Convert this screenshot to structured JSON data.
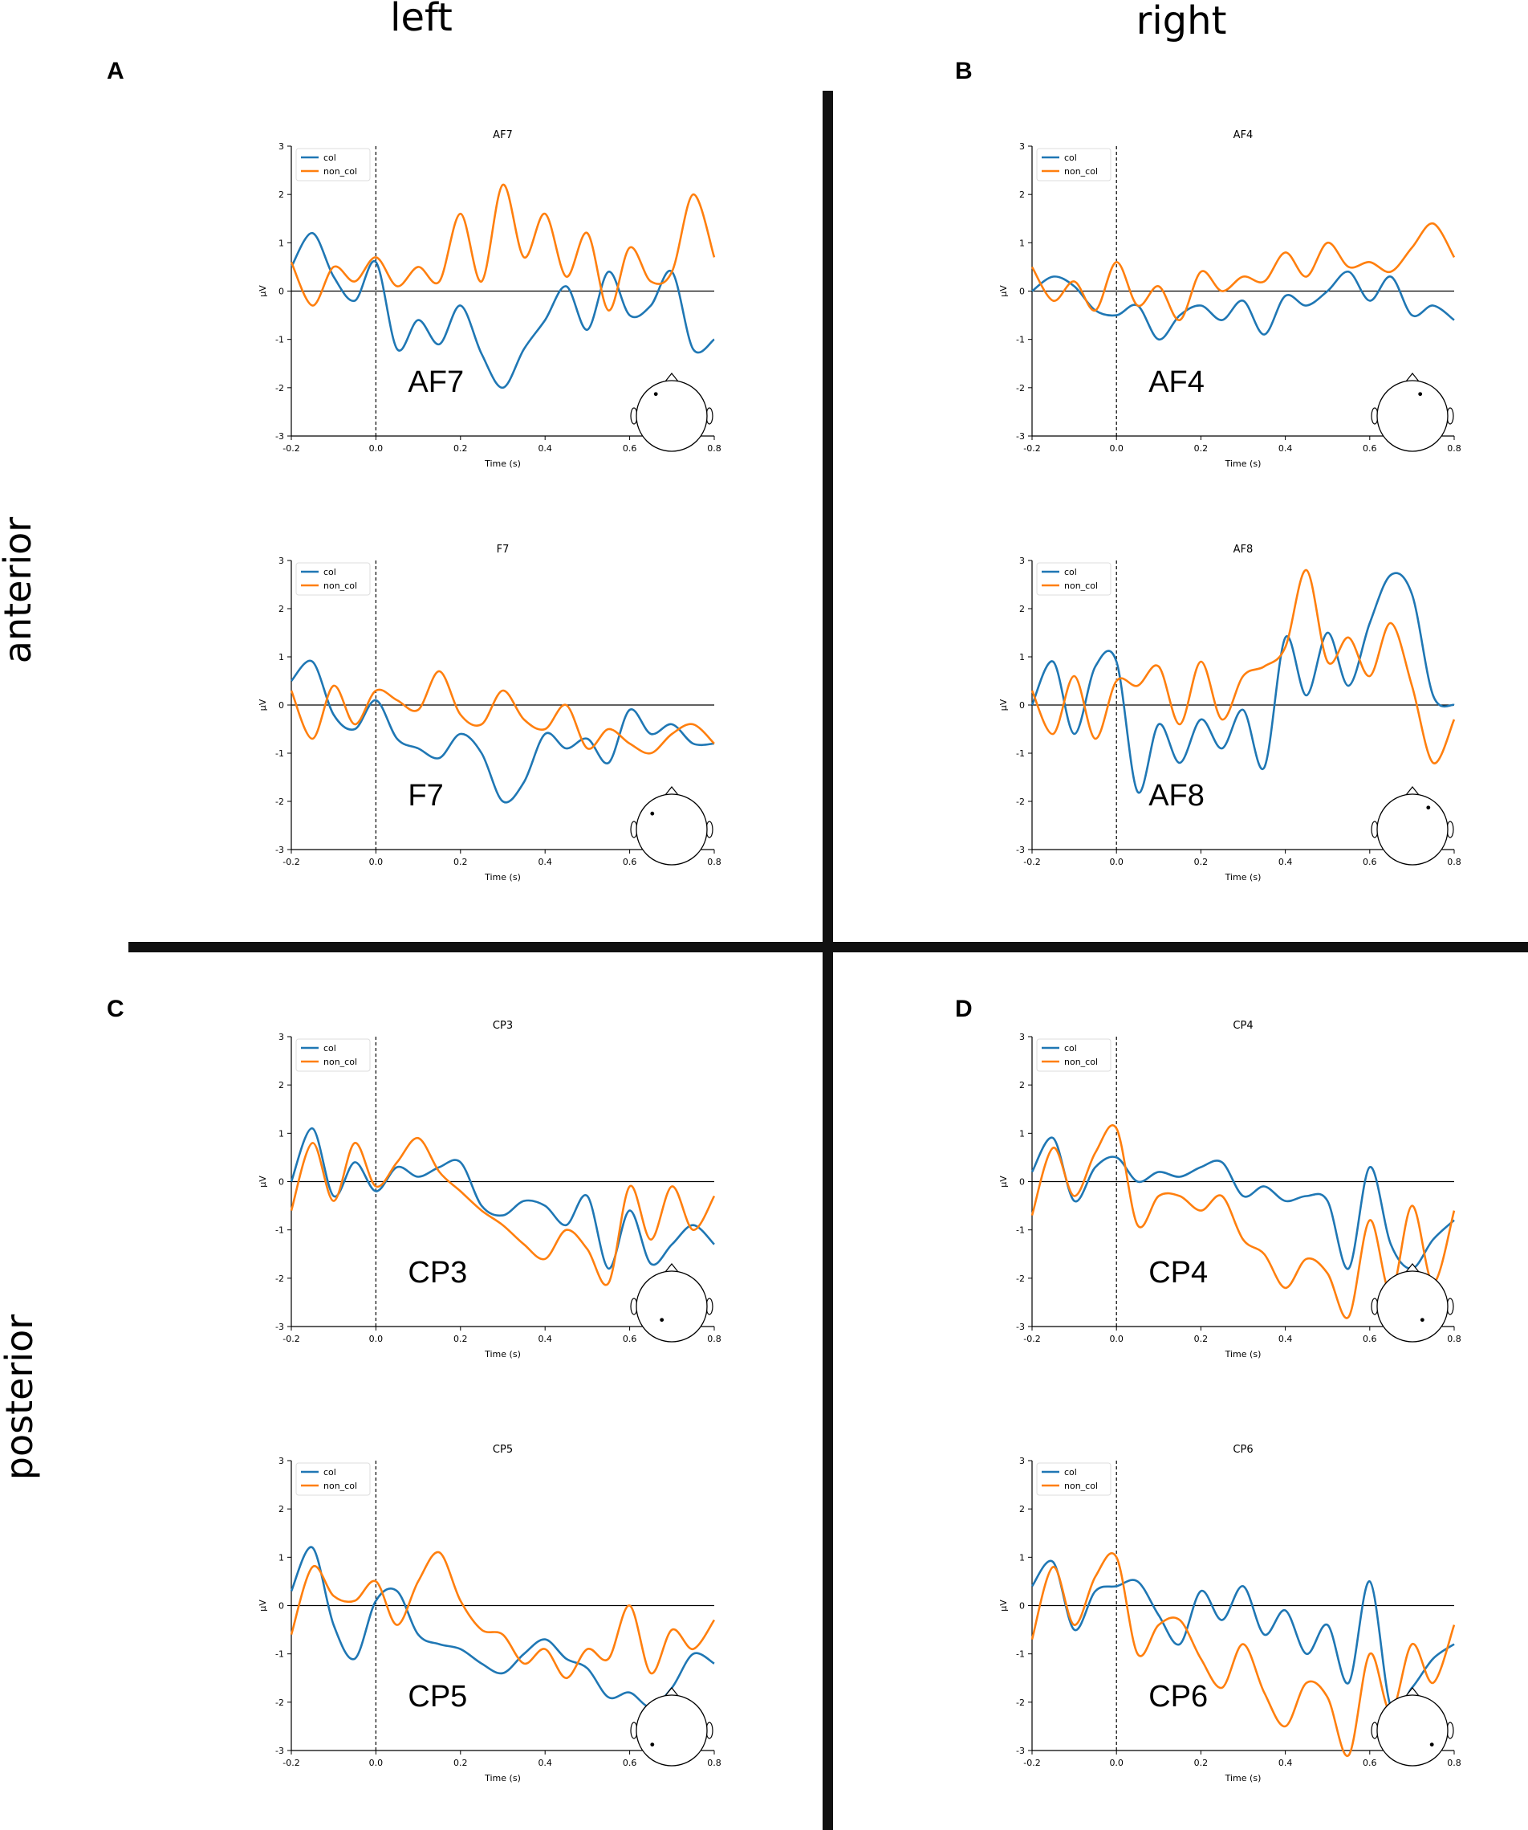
{
  "figure": {
    "column_labels": [
      "left",
      "right"
    ],
    "row_labels": [
      "anterior",
      "posterior"
    ],
    "panel_letters": [
      "A",
      "B",
      "C",
      "D"
    ],
    "colors": {
      "col": "#1f77b4",
      "non_col": "#ff7f0e",
      "axis": "#000000",
      "divider": "#111111"
    }
  },
  "chart_data": [
    {
      "type": "line",
      "panel": "A",
      "title": "AF7",
      "channel_label": "AF7",
      "xlabel": "Time (s)",
      "ylabel": "µV",
      "xlim": [
        -0.2,
        0.8
      ],
      "ylim": [
        -3,
        3
      ],
      "xticks": [
        "-0.2",
        "0.0",
        "0.2",
        "0.4",
        "0.6",
        "0.8"
      ],
      "yticks": [
        "3",
        "2",
        "1",
        "0",
        "-1",
        "-2",
        "-3"
      ],
      "legend": [
        "col",
        "non_col"
      ],
      "sensor": "AF7",
      "x": [
        -0.2,
        -0.15,
        -0.1,
        -0.05,
        0.0,
        0.05,
        0.1,
        0.15,
        0.2,
        0.25,
        0.3,
        0.35,
        0.4,
        0.45,
        0.5,
        0.55,
        0.6,
        0.65,
        0.7,
        0.75,
        0.8
      ],
      "series": [
        {
          "name": "col",
          "values": [
            0.5,
            1.2,
            0.3,
            -0.2,
            0.6,
            -1.2,
            -0.6,
            -1.1,
            -0.3,
            -1.3,
            -2.0,
            -1.2,
            -0.6,
            0.1,
            -0.8,
            0.4,
            -0.5,
            -0.3,
            0.4,
            -1.2,
            -1.0
          ]
        },
        {
          "name": "non_col",
          "values": [
            0.6,
            -0.3,
            0.5,
            0.2,
            0.7,
            0.1,
            0.5,
            0.2,
            1.6,
            0.2,
            2.2,
            0.7,
            1.6,
            0.3,
            1.2,
            -0.4,
            0.9,
            0.2,
            0.4,
            2.0,
            0.7
          ]
        }
      ]
    },
    {
      "type": "line",
      "panel": "B",
      "title": "AF4",
      "channel_label": "AF4",
      "xlabel": "Time (s)",
      "ylabel": "µV",
      "xlim": [
        -0.2,
        0.8
      ],
      "ylim": [
        -3,
        3
      ],
      "xticks": [
        "-0.2",
        "0.0",
        "0.2",
        "0.4",
        "0.6",
        "0.8"
      ],
      "yticks": [
        "3",
        "2",
        "1",
        "0",
        "-1",
        "-2",
        "-3"
      ],
      "legend": [
        "col",
        "non_col"
      ],
      "sensor": "AF4",
      "x": [
        -0.2,
        -0.15,
        -0.1,
        -0.05,
        0.0,
        0.05,
        0.1,
        0.15,
        0.2,
        0.25,
        0.3,
        0.35,
        0.4,
        0.45,
        0.5,
        0.55,
        0.6,
        0.65,
        0.7,
        0.75,
        0.8
      ],
      "series": [
        {
          "name": "col",
          "values": [
            0.0,
            0.3,
            0.1,
            -0.4,
            -0.5,
            -0.3,
            -1.0,
            -0.5,
            -0.3,
            -0.6,
            -0.2,
            -0.9,
            -0.1,
            -0.3,
            0.0,
            0.4,
            -0.2,
            0.3,
            -0.5,
            -0.3,
            -0.6
          ]
        },
        {
          "name": "non_col",
          "values": [
            0.5,
            -0.2,
            0.2,
            -0.4,
            0.6,
            -0.3,
            0.1,
            -0.6,
            0.4,
            0.0,
            0.3,
            0.2,
            0.8,
            0.3,
            1.0,
            0.5,
            0.6,
            0.4,
            0.9,
            1.4,
            0.7
          ]
        }
      ]
    },
    {
      "type": "line",
      "panel": "A",
      "title": "F7",
      "channel_label": "F7",
      "xlabel": "Time (s)",
      "ylabel": "µV",
      "xlim": [
        -0.2,
        0.8
      ],
      "ylim": [
        -3,
        3
      ],
      "xticks": [
        "-0.2",
        "0.0",
        "0.2",
        "0.4",
        "0.6",
        "0.8"
      ],
      "yticks": [
        "3",
        "2",
        "1",
        "0",
        "-1",
        "-2",
        "-3"
      ],
      "legend": [
        "col",
        "non_col"
      ],
      "sensor": "F7",
      "x": [
        -0.2,
        -0.15,
        -0.1,
        -0.05,
        0.0,
        0.05,
        0.1,
        0.15,
        0.2,
        0.25,
        0.3,
        0.35,
        0.4,
        0.45,
        0.5,
        0.55,
        0.6,
        0.65,
        0.7,
        0.75,
        0.8
      ],
      "series": [
        {
          "name": "col",
          "values": [
            0.5,
            0.9,
            -0.2,
            -0.5,
            0.1,
            -0.7,
            -0.9,
            -1.1,
            -0.6,
            -1.0,
            -2.0,
            -1.6,
            -0.6,
            -0.9,
            -0.7,
            -1.2,
            -0.1,
            -0.6,
            -0.4,
            -0.8,
            -0.8
          ]
        },
        {
          "name": "non_col",
          "values": [
            0.3,
            -0.7,
            0.4,
            -0.4,
            0.3,
            0.1,
            -0.1,
            0.7,
            -0.2,
            -0.4,
            0.3,
            -0.3,
            -0.5,
            0.0,
            -0.9,
            -0.5,
            -0.8,
            -1.0,
            -0.6,
            -0.4,
            -0.8
          ]
        }
      ]
    },
    {
      "type": "line",
      "panel": "B",
      "title": "AF8",
      "channel_label": "AF8",
      "xlabel": "Time (s)",
      "ylabel": "µV",
      "xlim": [
        -0.2,
        0.8
      ],
      "ylim": [
        -3,
        3
      ],
      "xticks": [
        "-0.2",
        "0.0",
        "0.2",
        "0.4",
        "0.6",
        "0.8"
      ],
      "yticks": [
        "3",
        "2",
        "1",
        "0",
        "-1",
        "-2",
        "-3"
      ],
      "legend": [
        "col",
        "non_col"
      ],
      "sensor": "AF8",
      "x": [
        -0.2,
        -0.15,
        -0.1,
        -0.05,
        0.0,
        0.05,
        0.1,
        0.15,
        0.2,
        0.25,
        0.3,
        0.35,
        0.4,
        0.45,
        0.5,
        0.55,
        0.6,
        0.65,
        0.7,
        0.75,
        0.8
      ],
      "series": [
        {
          "name": "col",
          "values": [
            0.0,
            0.9,
            -0.6,
            0.8,
            0.9,
            -1.8,
            -0.4,
            -1.2,
            -0.3,
            -0.9,
            -0.1,
            -1.3,
            1.4,
            0.2,
            1.5,
            0.4,
            1.7,
            2.7,
            2.3,
            0.2,
            0.0
          ]
        },
        {
          "name": "non_col",
          "values": [
            0.3,
            -0.6,
            0.6,
            -0.7,
            0.5,
            0.4,
            0.8,
            -0.4,
            0.9,
            -0.3,
            0.6,
            0.8,
            1.2,
            2.8,
            0.9,
            1.4,
            0.6,
            1.7,
            0.4,
            -1.2,
            -0.3
          ]
        }
      ]
    },
    {
      "type": "line",
      "panel": "C",
      "title": "CP3",
      "channel_label": "CP3",
      "xlabel": "Time (s)",
      "ylabel": "µV",
      "xlim": [
        -0.2,
        0.8
      ],
      "ylim": [
        -3,
        3
      ],
      "xticks": [
        "-0.2",
        "0.0",
        "0.2",
        "0.4",
        "0.6",
        "0.8"
      ],
      "yticks": [
        "3",
        "2",
        "1",
        "0",
        "-1",
        "-2",
        "-3"
      ],
      "legend": [
        "col",
        "non_col"
      ],
      "sensor": "CP3",
      "x": [
        -0.2,
        -0.15,
        -0.1,
        -0.05,
        0.0,
        0.05,
        0.1,
        0.15,
        0.2,
        0.25,
        0.3,
        0.35,
        0.4,
        0.45,
        0.5,
        0.55,
        0.6,
        0.65,
        0.7,
        0.75,
        0.8
      ],
      "series": [
        {
          "name": "col",
          "values": [
            0.0,
            1.1,
            -0.3,
            0.4,
            -0.2,
            0.3,
            0.1,
            0.3,
            0.4,
            -0.5,
            -0.7,
            -0.4,
            -0.5,
            -0.9,
            -0.3,
            -1.8,
            -0.6,
            -1.7,
            -1.3,
            -0.9,
            -1.3
          ]
        },
        {
          "name": "non_col",
          "values": [
            -0.6,
            0.8,
            -0.4,
            0.8,
            -0.1,
            0.4,
            0.9,
            0.2,
            -0.2,
            -0.6,
            -0.9,
            -1.3,
            -1.6,
            -1.0,
            -1.4,
            -2.1,
            -0.1,
            -1.2,
            -0.1,
            -1.0,
            -0.3
          ]
        }
      ]
    },
    {
      "type": "line",
      "panel": "D",
      "title": "CP4",
      "channel_label": "CP4",
      "xlabel": "Time (s)",
      "ylabel": "µV",
      "xlim": [
        -0.2,
        0.8
      ],
      "ylim": [
        -3,
        3
      ],
      "xticks": [
        "-0.2",
        "0.0",
        "0.2",
        "0.4",
        "0.6",
        "0.8"
      ],
      "yticks": [
        "3",
        "2",
        "1",
        "0",
        "-1",
        "-2",
        "-3"
      ],
      "legend": [
        "col",
        "non_col"
      ],
      "sensor": "CP4",
      "x": [
        -0.2,
        -0.15,
        -0.1,
        -0.05,
        0.0,
        0.05,
        0.1,
        0.15,
        0.2,
        0.25,
        0.3,
        0.35,
        0.4,
        0.45,
        0.5,
        0.55,
        0.6,
        0.65,
        0.7,
        0.75,
        0.8
      ],
      "series": [
        {
          "name": "col",
          "values": [
            0.2,
            0.9,
            -0.4,
            0.3,
            0.5,
            0.0,
            0.2,
            0.1,
            0.3,
            0.4,
            -0.3,
            -0.1,
            -0.4,
            -0.3,
            -0.4,
            -1.8,
            0.3,
            -1.3,
            -1.8,
            -1.2,
            -0.8
          ]
        },
        {
          "name": "non_col",
          "values": [
            -0.7,
            0.7,
            -0.3,
            0.6,
            1.1,
            -0.9,
            -0.3,
            -0.3,
            -0.6,
            -0.3,
            -1.2,
            -1.5,
            -2.2,
            -1.6,
            -1.9,
            -2.8,
            -0.8,
            -2.3,
            -0.5,
            -2.1,
            -0.6
          ]
        }
      ]
    },
    {
      "type": "line",
      "panel": "C",
      "title": "CP5",
      "channel_label": "CP5",
      "xlabel": "Time (s)",
      "ylabel": "µV",
      "xlim": [
        -0.2,
        0.8
      ],
      "ylim": [
        -3,
        3
      ],
      "xticks": [
        "-0.2",
        "0.0",
        "0.2",
        "0.4",
        "0.6",
        "0.8"
      ],
      "yticks": [
        "3",
        "2",
        "1",
        "0",
        "-1",
        "-2",
        "-3"
      ],
      "legend": [
        "col",
        "non_col"
      ],
      "sensor": "CP5",
      "x": [
        -0.2,
        -0.15,
        -0.1,
        -0.05,
        0.0,
        0.05,
        0.1,
        0.15,
        0.2,
        0.25,
        0.3,
        0.35,
        0.4,
        0.45,
        0.5,
        0.55,
        0.6,
        0.65,
        0.7,
        0.75,
        0.8
      ],
      "series": [
        {
          "name": "col",
          "values": [
            0.3,
            1.2,
            -0.4,
            -1.1,
            0.1,
            0.3,
            -0.6,
            -0.8,
            -0.9,
            -1.2,
            -1.4,
            -1.0,
            -0.7,
            -1.1,
            -1.3,
            -1.9,
            -1.8,
            -2.1,
            -1.7,
            -1.0,
            -1.2
          ]
        },
        {
          "name": "non_col",
          "values": [
            -0.6,
            0.8,
            0.2,
            0.1,
            0.5,
            -0.4,
            0.5,
            1.1,
            0.1,
            -0.5,
            -0.6,
            -1.2,
            -0.9,
            -1.5,
            -0.9,
            -1.1,
            0.0,
            -1.4,
            -0.5,
            -0.9,
            -0.3
          ]
        }
      ]
    },
    {
      "type": "line",
      "panel": "D",
      "title": "CP6",
      "channel_label": "CP6",
      "xlabel": "Time (s)",
      "ylabel": "µV",
      "xlim": [
        -0.2,
        0.8
      ],
      "ylim": [
        -3,
        3
      ],
      "xticks": [
        "-0.2",
        "0.0",
        "0.2",
        "0.4",
        "0.6",
        "0.8"
      ],
      "yticks": [
        "3",
        "2",
        "1",
        "0",
        "-1",
        "-2",
        "-3"
      ],
      "legend": [
        "col",
        "non_col"
      ],
      "sensor": "CP6",
      "x": [
        -0.2,
        -0.15,
        -0.1,
        -0.05,
        0.0,
        0.05,
        0.1,
        0.15,
        0.2,
        0.25,
        0.3,
        0.35,
        0.4,
        0.45,
        0.5,
        0.55,
        0.6,
        0.65,
        0.7,
        0.75,
        0.8
      ],
      "series": [
        {
          "name": "col",
          "values": [
            0.4,
            0.9,
            -0.5,
            0.3,
            0.4,
            0.5,
            -0.2,
            -0.8,
            0.3,
            -0.3,
            0.4,
            -0.6,
            -0.1,
            -1.0,
            -0.4,
            -1.6,
            0.5,
            -2.1,
            -1.7,
            -1.1,
            -0.8
          ]
        },
        {
          "name": "non_col",
          "values": [
            -0.7,
            0.8,
            -0.4,
            0.6,
            1.0,
            -1.0,
            -0.4,
            -0.3,
            -1.1,
            -1.7,
            -0.8,
            -1.8,
            -2.5,
            -1.6,
            -1.9,
            -3.1,
            -1.0,
            -2.2,
            -0.8,
            -1.6,
            -0.4
          ]
        }
      ]
    }
  ]
}
